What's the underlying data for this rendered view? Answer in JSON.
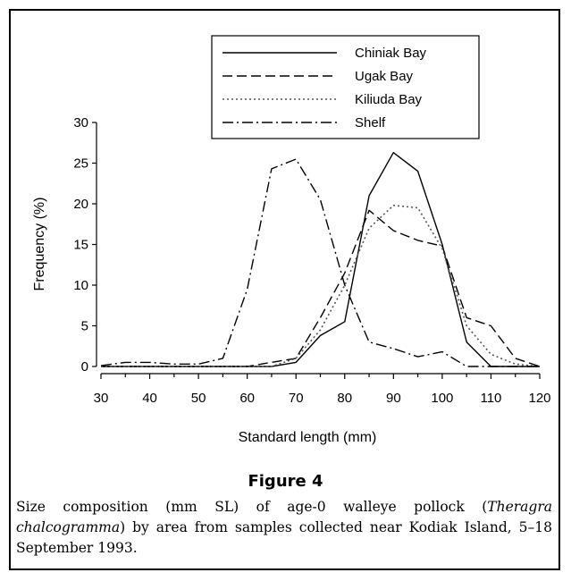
{
  "figure": {
    "label": "Figure 4",
    "caption_parts": [
      {
        "text": "Size composition (mm SL) of age-0 walleye pollock (",
        "italic": false
      },
      {
        "text": "Theragra chalcogramma",
        "italic": true
      },
      {
        "text": ") by area from samples collected near Kodiak Island, 5–18 September 1993.",
        "italic": false
      }
    ]
  },
  "chart_data": {
    "type": "line",
    "title": "",
    "xlabel": "Standard length (mm)",
    "ylabel": "Frequency (%)",
    "xlim": [
      30,
      120
    ],
    "ylim": [
      0,
      30
    ],
    "x_ticks": [
      30,
      40,
      50,
      60,
      70,
      80,
      90,
      100,
      110,
      120
    ],
    "y_ticks": [
      0,
      5,
      10,
      15,
      20,
      25,
      30
    ],
    "grid": false,
    "legend_position": "top-right",
    "x": [
      30,
      35,
      40,
      45,
      50,
      55,
      60,
      65,
      70,
      75,
      80,
      85,
      90,
      95,
      100,
      105,
      110,
      115,
      120
    ],
    "series": [
      {
        "name": "Chiniak Bay",
        "dash": "solid",
        "values": [
          0,
          0,
          0,
          0,
          0,
          0,
          0,
          0,
          0.5,
          3.8,
          5.5,
          21,
          26.3,
          24,
          15,
          3,
          0,
          0,
          0
        ]
      },
      {
        "name": "Ugak Bay",
        "dash": "dashed",
        "values": [
          0,
          0,
          0,
          0,
          0,
          0,
          0,
          0.5,
          1,
          6,
          11.5,
          19.2,
          16.7,
          15.5,
          14.8,
          6,
          5,
          1,
          0
        ]
      },
      {
        "name": "Kiliuda Bay",
        "dash": "dotted",
        "values": [
          0,
          0,
          0,
          0,
          0,
          0,
          0,
          0,
          1,
          4.5,
          10,
          17,
          19.8,
          19.5,
          14.5,
          5,
          1.5,
          0.3,
          0
        ]
      },
      {
        "name": "Shelf",
        "dash": "dashdot",
        "values": [
          0.1,
          0.5,
          0.5,
          0.3,
          0.3,
          1,
          9.5,
          24.3,
          25.5,
          20.5,
          10,
          3,
          2.2,
          1.2,
          1.8,
          0,
          0,
          0,
          0
        ]
      }
    ]
  }
}
